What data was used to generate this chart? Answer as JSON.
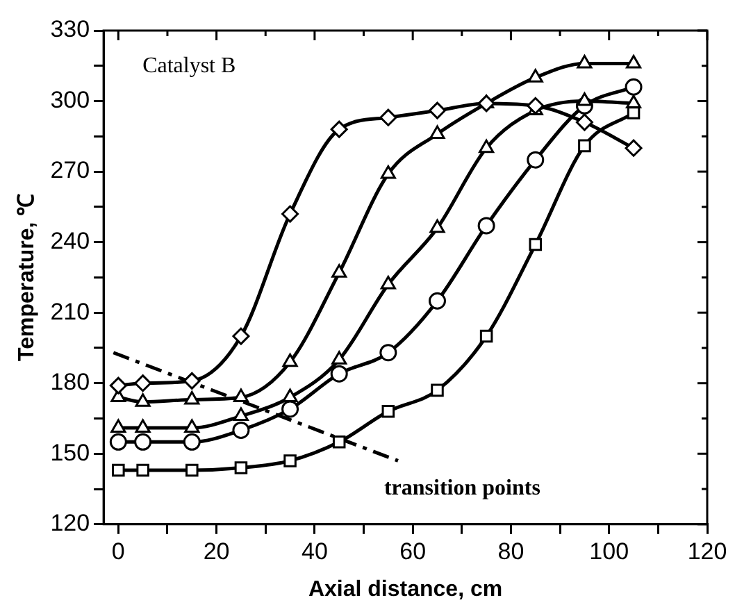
{
  "chart_data": {
    "type": "line",
    "xlabel": "Axial distance, cm",
    "ylabel": "Temperature, ℃",
    "annotations": [
      "Catalyst B"
    ],
    "xlim": [
      -3,
      120
    ],
    "ylim": [
      120,
      330
    ],
    "xticks": [
      0,
      {
        "value": 10,
        "label": null
      },
      20,
      {
        "value": 30,
        "label": null
      },
      40,
      {
        "value": 50,
        "label": null
      },
      60,
      {
        "value": 70,
        "label": null
      },
      80,
      {
        "value": 90,
        "label": null
      },
      100,
      {
        "value": 110,
        "label": null
      },
      120
    ],
    "yticks": [
      120,
      {
        "value": 135,
        "label": null
      },
      150,
      {
        "value": 165,
        "label": null
      },
      180,
      {
        "value": 195,
        "label": null
      },
      210,
      {
        "value": 225,
        "label": null
      },
      240,
      {
        "value": 255,
        "label": null
      },
      270,
      {
        "value": 285,
        "label": null
      },
      300,
      {
        "value": 315,
        "label": null
      },
      330
    ],
    "grid": false,
    "legend": false,
    "x": [
      0,
      5,
      15,
      25,
      35,
      45,
      55,
      65,
      75,
      85,
      95,
      105
    ],
    "series": [
      {
        "color": "#000000",
        "marker": "diamond",
        "values": [
          179,
          180,
          181,
          200,
          252,
          288,
          293,
          296,
          299,
          298,
          291,
          280
        ]
      },
      {
        "color": "#000000",
        "marker": "triangle",
        "values": [
          174,
          172,
          173,
          174,
          189,
          227,
          269,
          286,
          299,
          310,
          316,
          316
        ]
      },
      {
        "color": "#000000",
        "marker": "triangle",
        "values": [
          161,
          161,
          161,
          166,
          174,
          190,
          222,
          246,
          280,
          296,
          300,
          299
        ]
      },
      {
        "color": "#000000",
        "marker": "circle",
        "values": [
          155,
          155,
          155,
          160,
          169,
          184,
          193,
          215,
          247,
          275,
          298,
          306
        ]
      },
      {
        "color": "#000000",
        "marker": "square",
        "values": [
          143,
          143,
          143,
          144,
          147,
          155,
          168,
          177,
          200,
          239,
          281,
          295
        ]
      },
      {
        "name": "transition points",
        "color": "#000000",
        "marker": "none",
        "line_style": "dashed",
        "x": [
          -1,
          57
        ],
        "values": [
          193,
          147
        ]
      }
    ]
  }
}
